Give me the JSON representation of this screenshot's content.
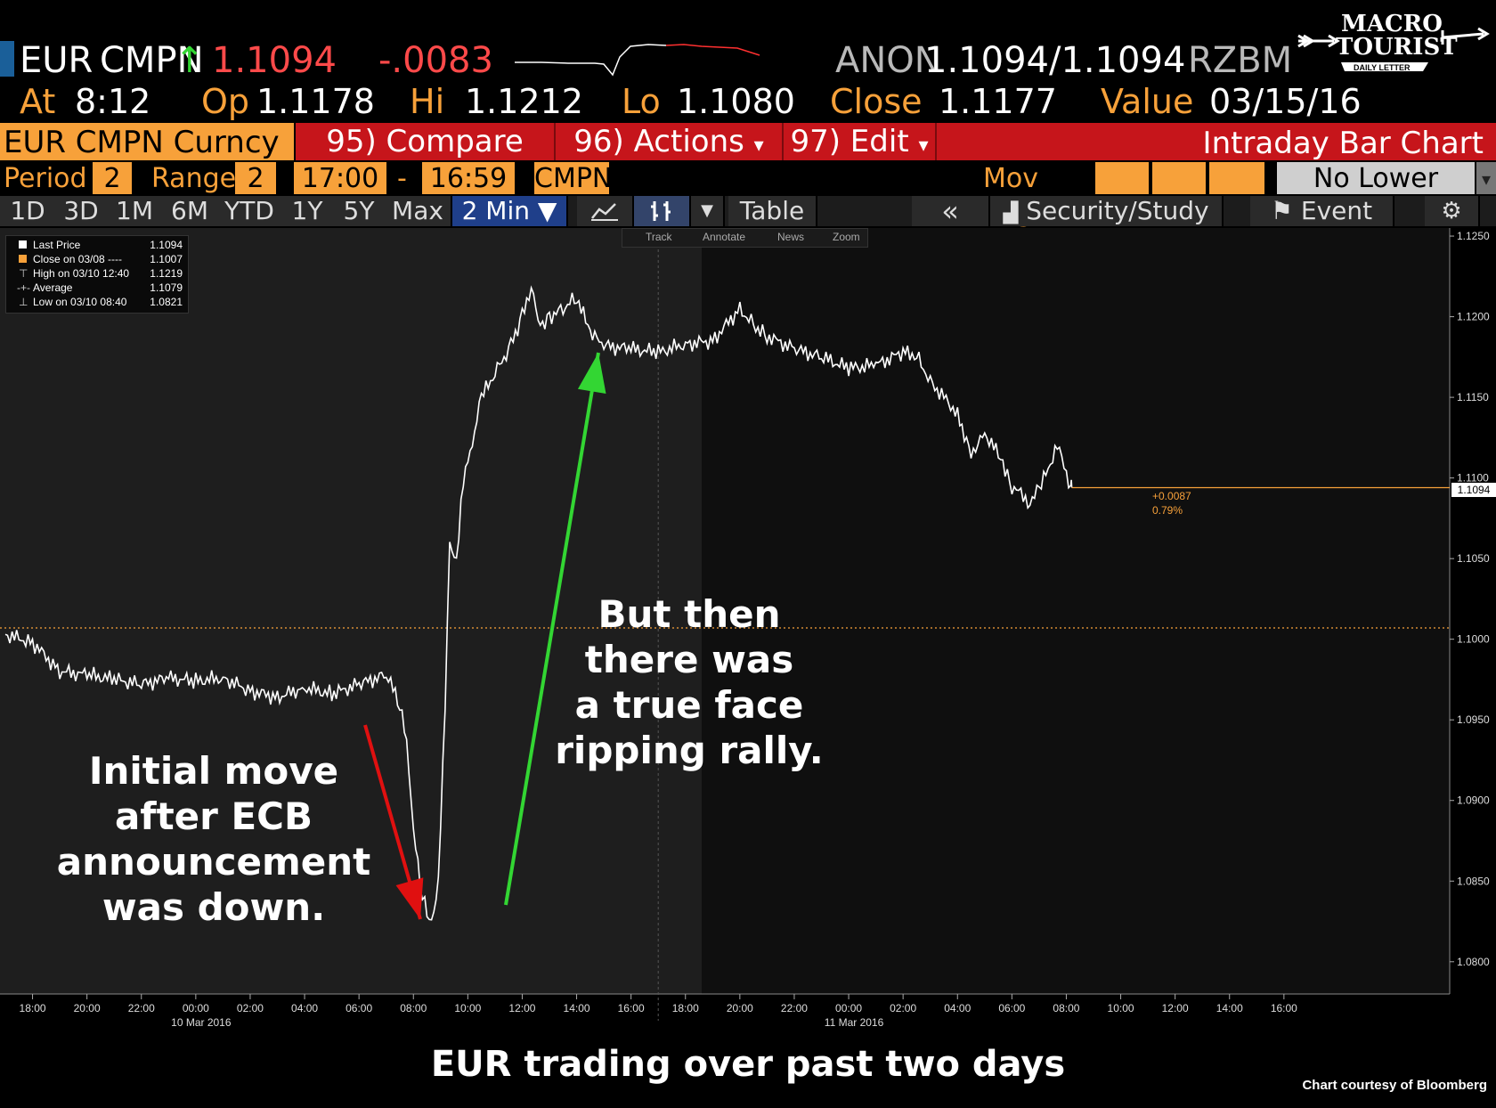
{
  "header": {
    "currency": "EUR",
    "source": "CMPN",
    "arrow": "↑",
    "last": "1.1094",
    "change": "-.0083",
    "bid_src": "ANON",
    "bid_ask": "1.1094/1.1094",
    "ask_src": "RZBM"
  },
  "quote": {
    "at_label": "At",
    "at_value": "8:12",
    "op_label": "Op",
    "op_value": "1.1178",
    "hi_label": "Hi",
    "hi_value": "1.1212",
    "lo_label": "Lo",
    "lo_value": "1.1080",
    "close_label": "Close",
    "close_value": "1.1177",
    "value_label": "Value",
    "value_date": "03/15/16"
  },
  "logo": {
    "line1": "MACRO",
    "line2": "TOURIST",
    "line3": "DAILY LETTER"
  },
  "function_bar": {
    "ticker": "EUR CMPN Curncy",
    "compare": "95) Compare",
    "actions": "96) Actions",
    "actions_arrow": "▾",
    "edit": "97) Edit",
    "edit_arrow": "▾",
    "title": "Intraday Bar Chart"
  },
  "period_row": {
    "period_label": "Period",
    "period_value": "2",
    "range_label": "Range",
    "range_value": "2",
    "start_time": "17:00",
    "dash": "-",
    "end_time": "16:59",
    "source": "CMPN",
    "mov_avg_label": "Mov Avg",
    "lower_chart": "No Lower Chart",
    "lower_chart_arrow": "▾"
  },
  "tabs": [
    "1D",
    "3D",
    "1M",
    "6M",
    "YTD",
    "1Y",
    "5Y",
    "Max"
  ],
  "interval": "2 Min ▼",
  "tools": {
    "line_chart_icon": "line-chart",
    "bar_chart_icon": "bar-chart",
    "dropdown_arrow": "▼",
    "table": "Table",
    "collapse": "«",
    "security_study": "Security/Study",
    "event": "Event",
    "settings_icon": "gear"
  },
  "chart_toolbar": [
    "Track",
    "Annotate",
    "News",
    "Zoom"
  ],
  "legend": [
    {
      "label": "Last Price",
      "value": "1.1094"
    },
    {
      "label": "Close on 03/08 ----",
      "value": "1.1007"
    },
    {
      "label": "High on 03/10 12:40",
      "value": "1.1219"
    },
    {
      "label": "Average",
      "value": "1.1079"
    },
    {
      "label": "Low on 03/10 08:40",
      "value": "1.0821"
    }
  ],
  "annotations": {
    "left": [
      "Initial move",
      "after ECB",
      "announcement",
      "was down."
    ],
    "right": [
      "But then",
      "there was",
      "a true face",
      "ripping rally."
    ]
  },
  "last_label": "1.1094",
  "change_label": "+0.0087",
  "change_pct": "0.79%",
  "footer": "EUR trading over past two days",
  "credit": "Chart courtesy of Bloomberg",
  "colors": {
    "orange": "#f7a13a",
    "red_button": "#c6151b",
    "up_arrow": "#33d633",
    "down_arrow": "#e01010"
  },
  "chart_data": {
    "type": "line",
    "title": "",
    "xlabel": "",
    "ylabel": "",
    "ylim": [
      1.078,
      1.1255
    ],
    "yticks": [
      "1.1250",
      "1.1200",
      "1.1150",
      "1.1100",
      "1.1050",
      "1.1000",
      "1.0950",
      "1.0900",
      "1.0850",
      "1.0800"
    ],
    "xticks": [
      "18:00",
      "20:00",
      "22:00",
      "00:00",
      "02:00",
      "04:00",
      "06:00",
      "08:00",
      "10:00",
      "12:00",
      "14:00",
      "16:00",
      "18:00",
      "20:00",
      "22:00",
      "00:00",
      "02:00",
      "04:00",
      "06:00",
      "08:00",
      "10:00",
      "12:00",
      "14:00",
      "16:00"
    ],
    "date_labels": [
      "10 Mar 2016",
      "11 Mar 2016"
    ],
    "prev_close": 1.1007,
    "last_price": 1.1094,
    "series": [
      {
        "x": [
          "17:00",
          "18:00",
          "19:00",
          "20:00",
          "21:00",
          "22:00",
          "23:00",
          "00:00",
          "01:00",
          "02:00",
          "03:00",
          "04:00",
          "05:00",
          "06:00",
          "07:00",
          "07:30",
          "07:45",
          "08:00",
          "08:20",
          "08:40",
          "08:55",
          "09:10",
          "09:20",
          "09:35",
          "09:50",
          "10:10",
          "10:30",
          "11:00",
          "11:30",
          "12:00",
          "12:20",
          "12:40",
          "13:00",
          "13:30",
          "14:00",
          "14:30",
          "15:00",
          "16:00",
          "17:00",
          "18:00",
          "19:00",
          "20:00",
          "20:30",
          "21:00",
          "22:00",
          "23:00",
          "00:00",
          "01:00",
          "02:00",
          "02:30",
          "03:00",
          "04:00",
          "04:30",
          "05:00",
          "05:40",
          "06:00",
          "06:40",
          "07:00",
          "07:40",
          "08:10",
          "08:12"
        ],
        "values": [
          1.1003,
          1.0998,
          1.098,
          1.0978,
          1.0975,
          1.0972,
          1.0976,
          1.0974,
          1.0976,
          1.0968,
          1.0964,
          1.097,
          1.0966,
          1.0972,
          1.0978,
          1.096,
          1.0935,
          1.088,
          1.084,
          1.0822,
          1.085,
          1.096,
          1.106,
          1.105,
          1.11,
          1.112,
          1.115,
          1.1165,
          1.118,
          1.12,
          1.1219,
          1.1195,
          1.12,
          1.1205,
          1.1212,
          1.119,
          1.1182,
          1.118,
          1.1178,
          1.1183,
          1.1185,
          1.1205,
          1.1195,
          1.1188,
          1.118,
          1.1175,
          1.1168,
          1.117,
          1.1178,
          1.1176,
          1.116,
          1.114,
          1.1115,
          1.1128,
          1.111,
          1.1095,
          1.1085,
          1.1092,
          1.112,
          1.1095,
          1.1094
        ]
      }
    ]
  }
}
